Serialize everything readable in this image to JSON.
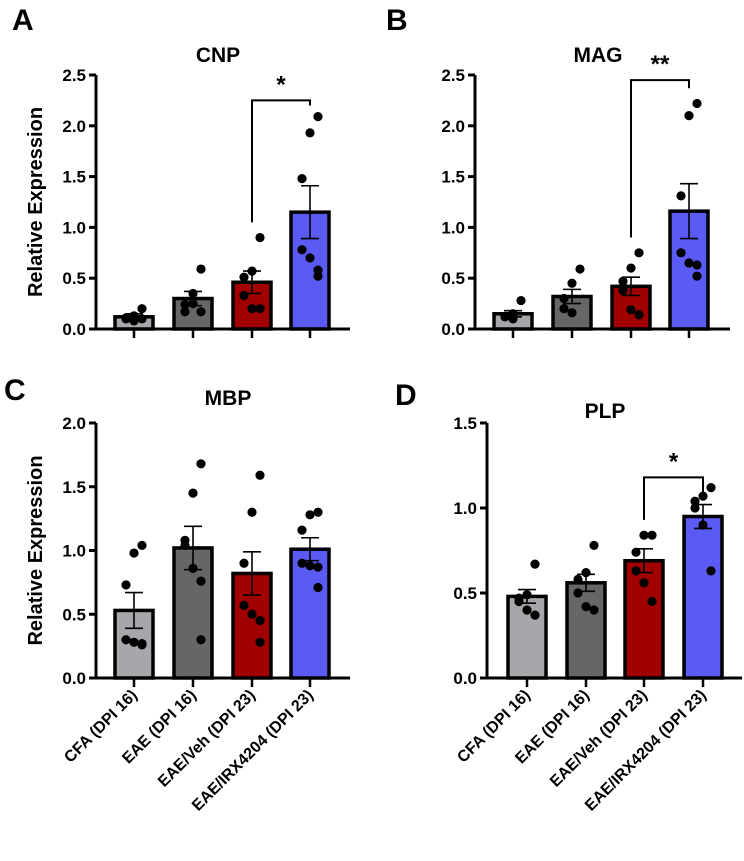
{
  "chart_data": [
    {
      "panel": "A",
      "type": "bar",
      "title": "CNP",
      "ylabel": "Relative Expression",
      "ylim": [
        0,
        2.5
      ],
      "yticks": [
        "0.0",
        "0.5",
        "1.0",
        "1.5",
        "2.0",
        "2.5"
      ],
      "ytick_values": [
        0,
        0.5,
        1,
        1.5,
        2,
        2.5
      ],
      "categories": [
        "CFA (DPI 16)",
        "EAE (DPI 16)",
        "EAE/Veh (DPI 23)",
        "EAE/IRX4204 (DPI 23)"
      ],
      "colors": [
        "#a6a6ab",
        "#666666",
        "#a00000",
        "#5a5af5"
      ],
      "means": [
        0.12,
        0.3,
        0.46,
        1.15
      ],
      "sem": [
        0.03,
        0.07,
        0.11,
        0.26
      ],
      "points": [
        [
          0.2,
          0.13,
          0.1,
          0.11,
          0.08,
          0.1
        ],
        [
          0.59,
          0.35,
          0.24,
          0.17,
          0.25,
          0.17
        ],
        [
          0.9,
          0.57,
          0.51,
          0.33,
          0.2,
          0.2
        ],
        [
          2.09,
          1.93,
          1.48,
          0.78,
          0.7,
          0.58,
          0.52
        ]
      ],
      "significance": {
        "between": [
          2,
          3
        ],
        "label": "*",
        "level": 2.25,
        "left_end": 1.05,
        "right_end": 2.2
      }
    },
    {
      "panel": "B",
      "type": "bar",
      "title": "MAG",
      "ylabel": "",
      "ylim": [
        0,
        2.5
      ],
      "yticks": [
        "0.0",
        "0.5",
        "1.0",
        "1.5",
        "2.0",
        "2.5"
      ],
      "ytick_values": [
        0,
        0.5,
        1,
        1.5,
        2,
        2.5
      ],
      "categories": [
        "CFA (DPI 16)",
        "EAE (DPI 16)",
        "EAE/Veh (DPI 23)",
        "EAE/IRX4204 (DPI 23)"
      ],
      "colors": [
        "#a6a6ab",
        "#666666",
        "#a00000",
        "#5a5af5"
      ],
      "means": [
        0.15,
        0.32,
        0.42,
        1.16
      ],
      "sem": [
        0.03,
        0.07,
        0.09,
        0.27
      ],
      "points": [
        [
          0.28,
          0.15,
          0.12,
          0.12,
          0.1
        ],
        [
          0.59,
          0.45,
          0.3,
          0.2,
          0.16
        ],
        [
          0.75,
          0.6,
          0.47,
          0.38,
          0.19,
          0.14
        ],
        [
          2.22,
          2.1,
          1.31,
          0.75,
          0.65,
          0.63,
          0.52
        ]
      ],
      "significance": {
        "between": [
          2,
          3
        ],
        "label": "**",
        "level": 2.45,
        "left_end": 0.9,
        "right_end": 2.37
      }
    },
    {
      "panel": "C",
      "type": "bar",
      "title": "MBP",
      "ylabel": "Relative Expression",
      "ylim": [
        0,
        2.0
      ],
      "yticks": [
        "0.0",
        "0.5",
        "1.0",
        "1.5",
        "2.0"
      ],
      "ytick_values": [
        0,
        0.5,
        1,
        1.5,
        2
      ],
      "categories": [
        "CFA (DPI 16)",
        "EAE (DPI 16)",
        "EAE/Veh (DPI 23)",
        "EAE/IRX4204 (DPI 23)"
      ],
      "colors": [
        "#a6a6ab",
        "#666666",
        "#a00000",
        "#5a5af5"
      ],
      "means": [
        0.53,
        1.02,
        0.82,
        1.01
      ],
      "sem": [
        0.14,
        0.17,
        0.17,
        0.09
      ],
      "points": [
        [
          1.04,
          0.98,
          0.73,
          0.3,
          0.28,
          0.27,
          0.26
        ],
        [
          1.68,
          1.45,
          1.08,
          1.04,
          0.86,
          0.76,
          0.3
        ],
        [
          1.59,
          1.3,
          0.9,
          0.57,
          0.5,
          0.45,
          0.28
        ],
        [
          1.3,
          1.28,
          1.16,
          0.9,
          0.88,
          0.87,
          0.71
        ]
      ],
      "significance": null
    },
    {
      "panel": "D",
      "type": "bar",
      "title": "PLP",
      "ylabel": "",
      "ylim": [
        0,
        1.5
      ],
      "yticks": [
        "0.0",
        "0.5",
        "1.0",
        "1.5"
      ],
      "ytick_values": [
        0,
        0.5,
        1,
        1.5
      ],
      "categories": [
        "CFA (DPI 16)",
        "EAE (DPI 16)",
        "EAE/Veh (DPI 23)",
        "EAE/IRX4204 (DPI 23)"
      ],
      "colors": [
        "#a6a6ab",
        "#666666",
        "#a00000",
        "#5a5af5"
      ],
      "means": [
        0.48,
        0.56,
        0.69,
        0.95
      ],
      "sem": [
        0.04,
        0.05,
        0.07,
        0.07
      ],
      "points": [
        [
          0.67,
          0.49,
          0.47,
          0.45,
          0.4,
          0.37
        ],
        [
          0.78,
          0.62,
          0.58,
          0.5,
          0.42,
          0.4
        ],
        [
          0.84,
          0.84,
          0.74,
          0.63,
          0.56,
          0.45
        ],
        [
          1.12,
          1.07,
          1.04,
          1.0,
          0.9,
          0.63
        ]
      ],
      "significance": {
        "between": [
          2,
          3
        ],
        "label": "*",
        "level": 1.18,
        "left_end": 0.93,
        "right_end": 1.08
      }
    }
  ]
}
